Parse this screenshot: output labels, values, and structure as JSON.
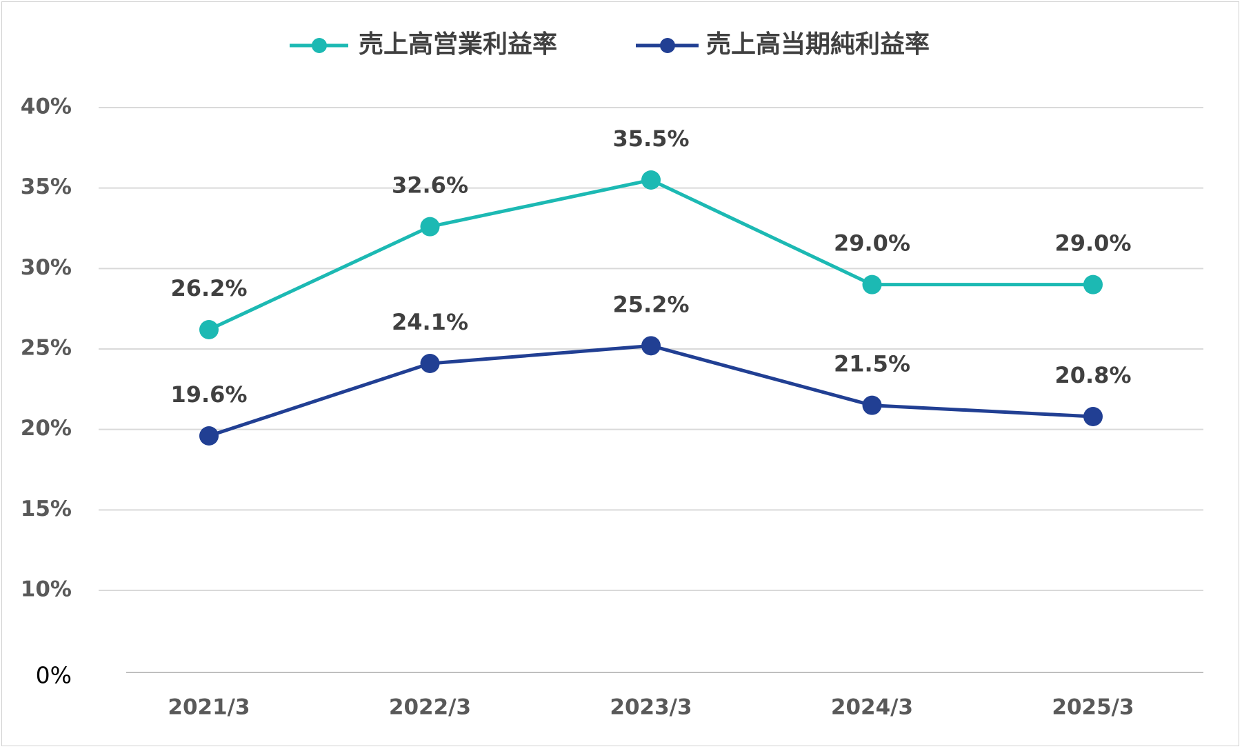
{
  "chart_data": {
    "type": "line",
    "title": "",
    "xlabel": "",
    "ylabel": "",
    "categories": [
      "2021/3",
      "2022/3",
      "2023/3",
      "2024/3",
      "2025/3"
    ],
    "yticks": [
      "0%",
      "10%",
      "15%",
      "20%",
      "25%",
      "30%",
      "35%",
      "40%"
    ],
    "ylim": [
      0,
      40
    ],
    "grid": true,
    "legend_position": "top",
    "series": [
      {
        "name": "売上高営業利益率",
        "color": "#1CB9B3",
        "values": [
          26.2,
          32.6,
          35.5,
          29.0,
          29.0
        ],
        "labels": [
          "26.2%",
          "32.6%",
          "35.5%",
          "29.0%",
          "29.0%"
        ]
      },
      {
        "name": "売上高当期純利益率",
        "color": "#213F93",
        "values": [
          19.6,
          24.1,
          25.2,
          21.5,
          20.8
        ],
        "labels": [
          "19.6%",
          "24.1%",
          "25.2%",
          "21.5%",
          "20.8%"
        ]
      }
    ]
  }
}
